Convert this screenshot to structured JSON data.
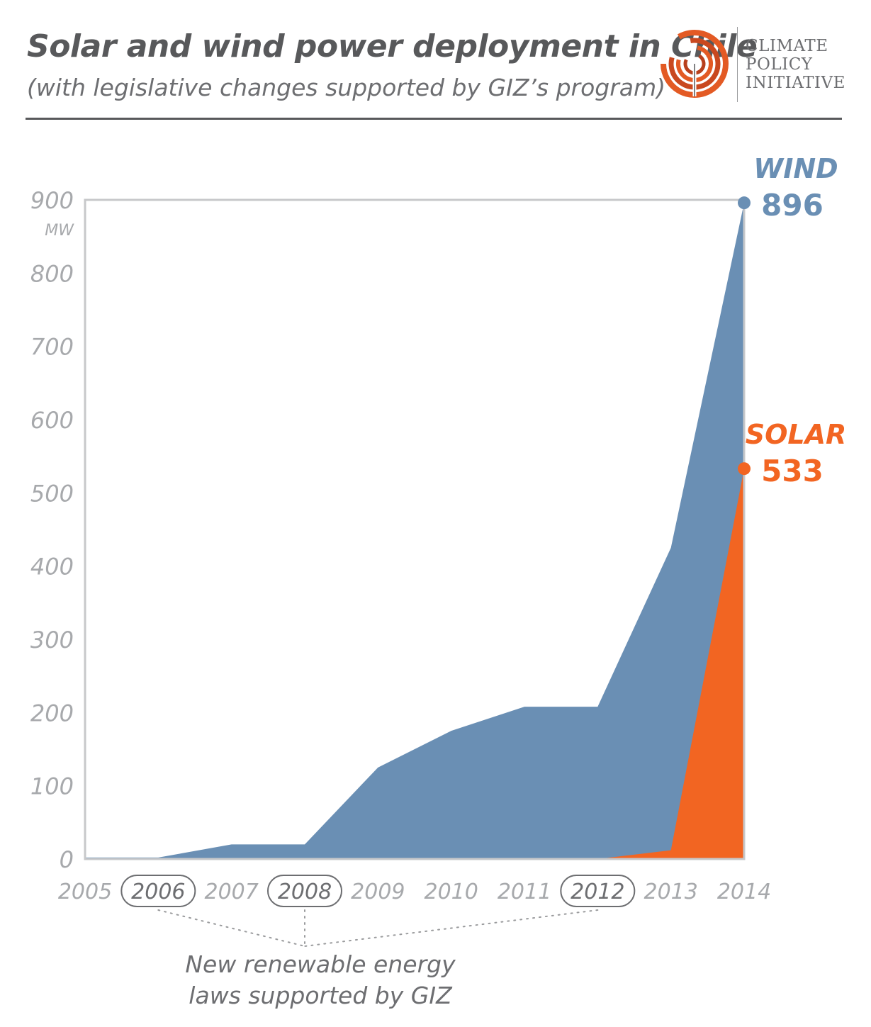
{
  "header": {
    "title": "Solar and wind power deployment in Chile",
    "subtitle": "(with legislative changes supported by GIZ’s program)"
  },
  "logo": {
    "icon": "climate-policy-initiative-logo-icon",
    "lines": [
      "CLIMATE",
      "POLICY",
      "INITIATIVE"
    ],
    "colors": {
      "orange": "#e35a24",
      "dark_orange": "#b8401d"
    }
  },
  "chart_data": {
    "type": "area",
    "x": [
      2005,
      2006,
      2007,
      2008,
      2009,
      2010,
      2011,
      2012,
      2013,
      2014
    ],
    "x_tick_labels": [
      "2005",
      "2006",
      "2007",
      "2008",
      "2009",
      "2010",
      "2011",
      "2012",
      "2013",
      "2014"
    ],
    "ylim": [
      0,
      900
    ],
    "y_ticks": [
      0,
      100,
      200,
      300,
      400,
      500,
      600,
      700,
      800,
      900
    ],
    "y_tick_labels": [
      "0",
      "100",
      "200",
      "300",
      "400",
      "500",
      "600",
      "700",
      "800",
      "900"
    ],
    "y_unit": "MW",
    "grid": false,
    "series": [
      {
        "name": "WIND",
        "color": "#6a8fb4",
        "label_color": "#6a8fb4",
        "values": [
          2,
          2,
          20,
          20,
          125,
          175,
          208,
          208,
          425,
          896
        ],
        "end_label": "896"
      },
      {
        "name": "SOLAR",
        "color": "#f26522",
        "label_color": "#f26522",
        "values": [
          0,
          0,
          0,
          0,
          0,
          0,
          0,
          0,
          12,
          533
        ],
        "end_label": "533"
      }
    ],
    "highlighted_years": [
      "2006",
      "2008",
      "2012"
    ],
    "annotation": {
      "lines": [
        "New renewable energy",
        "laws supported by GIZ"
      ]
    },
    "colors": {
      "axis": "#c7c8ca",
      "tick_text": "#a7a9ac",
      "annotation_text": "#6d6e71",
      "pill": "#6d6e71"
    }
  }
}
